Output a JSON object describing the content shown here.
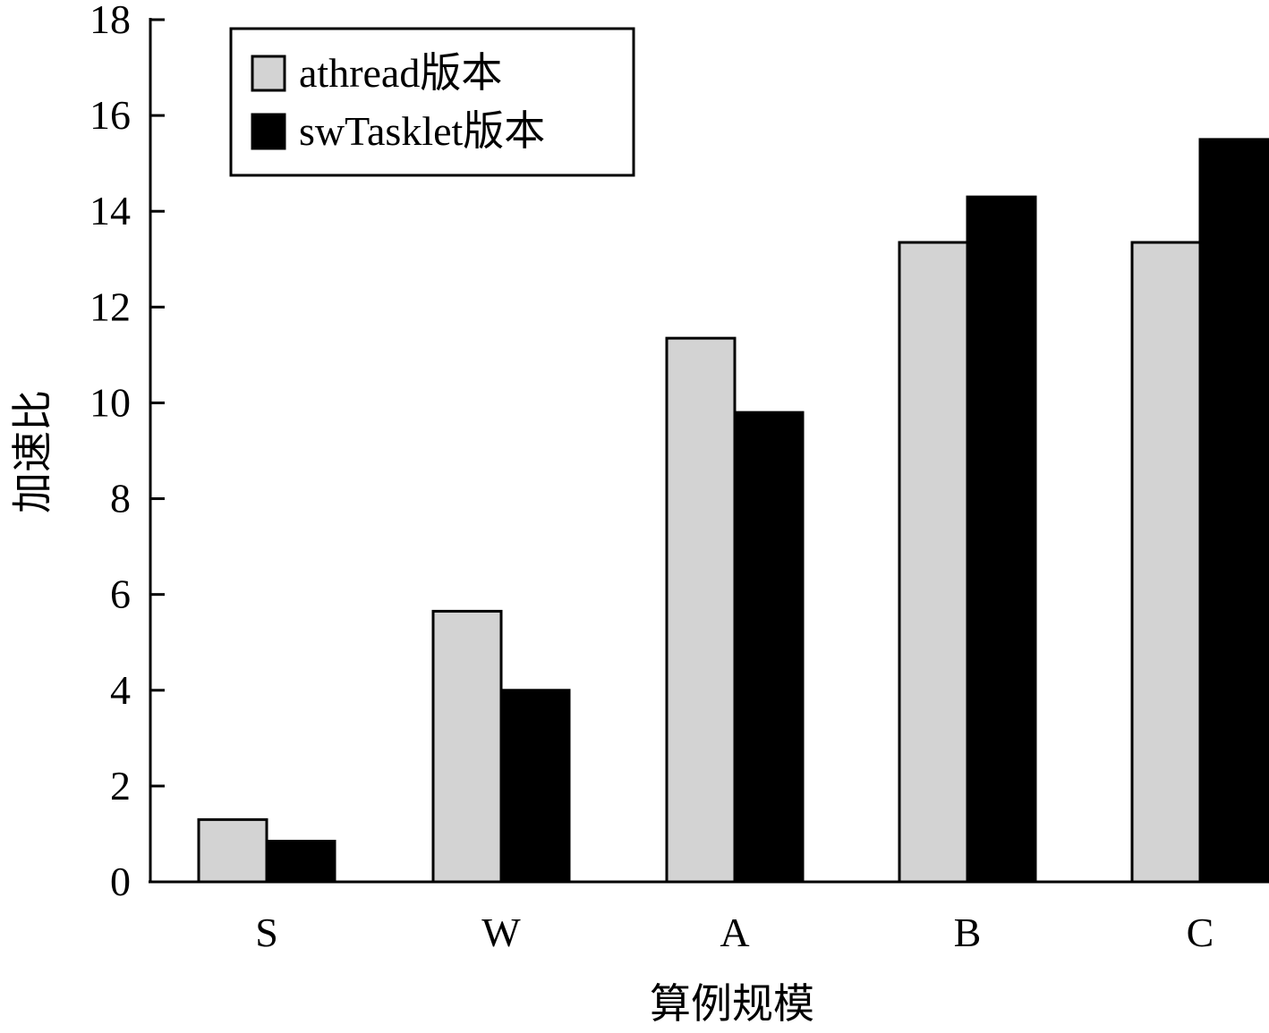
{
  "chart_data": {
    "type": "bar",
    "categories": [
      "S",
      "W",
      "A",
      "B",
      "C"
    ],
    "series": [
      {
        "name": "athread版本",
        "values": [
          1.3,
          5.65,
          11.35,
          13.35,
          13.35
        ],
        "color": "#d3d3d3"
      },
      {
        "name": "swTasklet版本",
        "values": [
          0.85,
          4.0,
          9.8,
          14.3,
          15.5
        ],
        "color": "#000000"
      }
    ],
    "title": "",
    "xlabel": "算例规模",
    "ylabel": "加速比",
    "ylim": [
      0,
      18
    ],
    "yticks": [
      0,
      2,
      4,
      6,
      8,
      10,
      12,
      14,
      16,
      18
    ],
    "grid": false,
    "legend_position": "top-left"
  }
}
